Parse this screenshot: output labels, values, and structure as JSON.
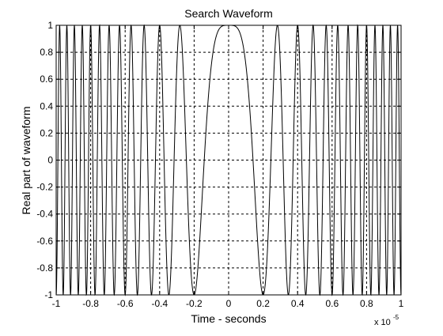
{
  "chart_data": {
    "type": "line",
    "title": "Search Waveform",
    "xlabel": "Time - seconds",
    "ylabel": "Real part of waveform",
    "x_multiplier_label": "x 10",
    "x_multiplier_exponent": "-5",
    "xlim": [
      -1,
      1
    ],
    "ylim": [
      -1,
      1
    ],
    "x_ticks": [
      -1,
      -0.8,
      -0.6,
      -0.4,
      -0.2,
      0,
      0.2,
      0.4,
      0.6,
      0.8,
      1
    ],
    "x_tick_labels": [
      "-1",
      "-0.8",
      "-0.6",
      "-0.4",
      "-0.2",
      "0",
      "0.2",
      "0.4",
      "0.6",
      "0.8",
      "1"
    ],
    "y_ticks": [
      -1,
      -0.8,
      -0.6,
      -0.4,
      -0.2,
      0,
      0.2,
      0.4,
      0.6,
      0.8,
      1
    ],
    "y_tick_labels": [
      "-1",
      "-0.8",
      "-0.6",
      "-0.4",
      "-0.2",
      "0",
      "0.2",
      "0.4",
      "0.6",
      "0.8",
      "1"
    ],
    "grid": true,
    "series": [
      {
        "function": "cos(pi * k * t^2)",
        "k": 25,
        "x_range": [
          -1,
          1
        ],
        "samples": 2000,
        "color": "#000000"
      }
    ]
  }
}
